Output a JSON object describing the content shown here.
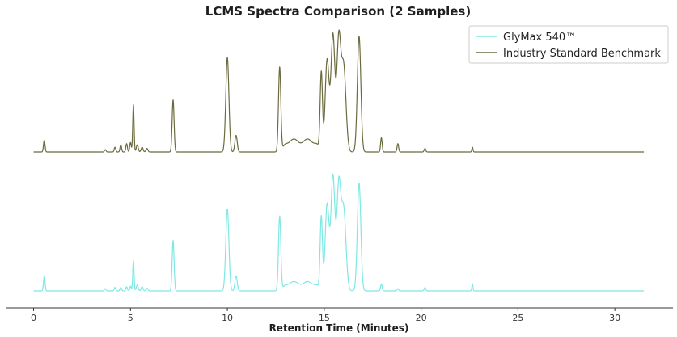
{
  "chart_data": {
    "type": "line",
    "title": "LCMS Spectra Comparison (2 Samples)",
    "xlabel": "Retention Time (Minutes)",
    "ylabel": "",
    "xlim": [
      -1.4,
      33.0
    ],
    "xticks": [
      0,
      5,
      10,
      15,
      20,
      25,
      30
    ],
    "xtick_labels": [
      "0",
      "5",
      "10",
      "15",
      "20",
      "25",
      "30"
    ],
    "y_axis_visible": false,
    "grid": false,
    "legend_position": "top-right",
    "series": [
      {
        "name": "GlyMax 540™",
        "color": "#7fe8e4",
        "baseline": 0,
        "peaks": [
          {
            "rt": 0.55,
            "height": 0.13,
            "width": 0.04
          },
          {
            "rt": 3.7,
            "height": 0.02,
            "width": 0.04
          },
          {
            "rt": 4.2,
            "height": 0.03,
            "width": 0.04
          },
          {
            "rt": 4.5,
            "height": 0.03,
            "width": 0.04
          },
          {
            "rt": 4.8,
            "height": 0.035,
            "width": 0.04
          },
          {
            "rt": 5.0,
            "height": 0.04,
            "width": 0.04
          },
          {
            "rt": 5.15,
            "height": 0.26,
            "width": 0.035
          },
          {
            "rt": 5.35,
            "height": 0.05,
            "width": 0.05
          },
          {
            "rt": 5.6,
            "height": 0.035,
            "width": 0.05
          },
          {
            "rt": 5.85,
            "height": 0.025,
            "width": 0.05
          },
          {
            "rt": 7.2,
            "height": 0.43,
            "width": 0.05
          },
          {
            "rt": 10.0,
            "height": 0.7,
            "width": 0.08
          },
          {
            "rt": 10.45,
            "height": 0.13,
            "width": 0.06
          },
          {
            "rt": 12.7,
            "height": 0.64,
            "width": 0.06
          },
          {
            "rt": 14.85,
            "height": 0.63,
            "width": 0.06
          },
          {
            "rt": 15.15,
            "height": 0.74,
            "width": 0.1
          },
          {
            "rt": 15.45,
            "height": 0.98,
            "width": 0.1
          },
          {
            "rt": 15.75,
            "height": 0.88,
            "width": 0.1
          },
          {
            "rt": 16.0,
            "height": 0.7,
            "width": 0.12
          },
          {
            "rt": 16.8,
            "height": 0.92,
            "width": 0.09
          },
          {
            "rt": 17.95,
            "height": 0.06,
            "width": 0.04
          },
          {
            "rt": 18.8,
            "height": 0.02,
            "width": 0.04
          },
          {
            "rt": 20.2,
            "height": 0.03,
            "width": 0.04
          },
          {
            "rt": 22.65,
            "height": 0.06,
            "width": 0.03
          }
        ],
        "humps": [
          {
            "start": 12.9,
            "end": 14.7,
            "height": 0.08
          }
        ]
      },
      {
        "name": "Industry Standard Benchmark",
        "color": "#6b6b3e",
        "baseline": 0,
        "peaks": [
          {
            "rt": 0.55,
            "height": 0.1,
            "width": 0.04
          },
          {
            "rt": 3.7,
            "height": 0.02,
            "width": 0.04
          },
          {
            "rt": 4.2,
            "height": 0.04,
            "width": 0.04
          },
          {
            "rt": 4.5,
            "height": 0.06,
            "width": 0.04
          },
          {
            "rt": 4.8,
            "height": 0.07,
            "width": 0.04
          },
          {
            "rt": 5.0,
            "height": 0.08,
            "width": 0.04
          },
          {
            "rt": 5.15,
            "height": 0.4,
            "width": 0.035
          },
          {
            "rt": 5.35,
            "height": 0.06,
            "width": 0.05
          },
          {
            "rt": 5.6,
            "height": 0.04,
            "width": 0.05
          },
          {
            "rt": 5.85,
            "height": 0.03,
            "width": 0.05
          },
          {
            "rt": 7.2,
            "height": 0.44,
            "width": 0.05
          },
          {
            "rt": 10.0,
            "height": 0.8,
            "width": 0.08
          },
          {
            "rt": 10.45,
            "height": 0.14,
            "width": 0.06
          },
          {
            "rt": 12.7,
            "height": 0.72,
            "width": 0.06
          },
          {
            "rt": 14.85,
            "height": 0.67,
            "width": 0.06
          },
          {
            "rt": 15.15,
            "height": 0.78,
            "width": 0.1
          },
          {
            "rt": 15.45,
            "height": 0.99,
            "width": 0.1
          },
          {
            "rt": 15.75,
            "height": 0.93,
            "width": 0.1
          },
          {
            "rt": 16.0,
            "height": 0.73,
            "width": 0.12
          },
          {
            "rt": 16.8,
            "height": 0.98,
            "width": 0.09
          },
          {
            "rt": 17.95,
            "height": 0.12,
            "width": 0.04
          },
          {
            "rt": 18.8,
            "height": 0.07,
            "width": 0.04
          },
          {
            "rt": 20.2,
            "height": 0.03,
            "width": 0.04
          },
          {
            "rt": 22.65,
            "height": 0.04,
            "width": 0.03
          }
        ],
        "humps": [
          {
            "start": 12.9,
            "end": 14.7,
            "height": 0.11
          }
        ]
      }
    ]
  }
}
